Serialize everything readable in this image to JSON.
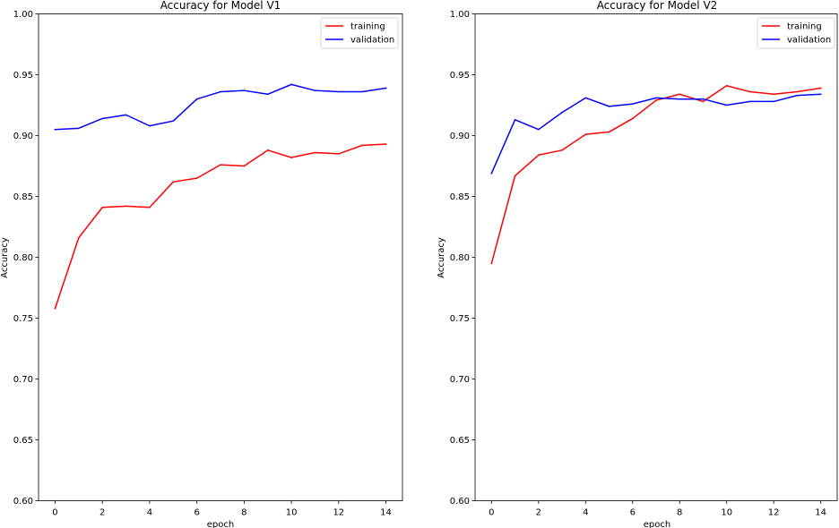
{
  "chart_data": [
    {
      "type": "line",
      "title": "Accuracy for Model V1",
      "xlabel": "epoch",
      "ylabel": "Accuracy",
      "xlim": [
        -0.7,
        14.7
      ],
      "ylim": [
        0.6,
        1.0
      ],
      "xticks": [
        0,
        2,
        4,
        6,
        8,
        10,
        12,
        14
      ],
      "yticks": [
        0.6,
        0.65,
        0.7,
        0.75,
        0.8,
        0.85,
        0.9,
        0.95,
        1.0
      ],
      "xtick_labels": [
        "0",
        "2",
        "4",
        "6",
        "8",
        "10",
        "12",
        "14"
      ],
      "ytick_labels": [
        "0.60",
        "0.65",
        "0.70",
        "0.75",
        "0.80",
        "0.85",
        "0.90",
        "0.95",
        "1.00"
      ],
      "grid": false,
      "legend": "top-right",
      "x": [
        0,
        1,
        2,
        3,
        4,
        5,
        6,
        7,
        8,
        9,
        10,
        11,
        12,
        13,
        14
      ],
      "series": [
        {
          "name": "training",
          "color": "#ff0000",
          "values": [
            0.758,
            0.816,
            0.841,
            0.842,
            0.841,
            0.862,
            0.865,
            0.876,
            0.875,
            0.888,
            0.882,
            0.886,
            0.885,
            0.892,
            0.893
          ]
        },
        {
          "name": "validation",
          "color": "#0000ff",
          "values": [
            0.905,
            0.906,
            0.914,
            0.917,
            0.908,
            0.912,
            0.93,
            0.936,
            0.937,
            0.934,
            0.942,
            0.937,
            0.936,
            0.936,
            0.939
          ]
        }
      ]
    },
    {
      "type": "line",
      "title": "Accuracy for Model V2",
      "xlabel": "epoch",
      "ylabel": "Accuracy",
      "xlim": [
        -0.7,
        14.7
      ],
      "ylim": [
        0.6,
        1.0
      ],
      "xticks": [
        0,
        2,
        4,
        6,
        8,
        10,
        12,
        14
      ],
      "yticks": [
        0.6,
        0.65,
        0.7,
        0.75,
        0.8,
        0.85,
        0.9,
        0.95,
        1.0
      ],
      "xtick_labels": [
        "0",
        "2",
        "4",
        "6",
        "8",
        "10",
        "12",
        "14"
      ],
      "ytick_labels": [
        "0.60",
        "0.65",
        "0.70",
        "0.75",
        "0.80",
        "0.85",
        "0.90",
        "0.95",
        "1.00"
      ],
      "grid": false,
      "legend": "top-right",
      "x": [
        0,
        1,
        2,
        3,
        4,
        5,
        6,
        7,
        8,
        9,
        10,
        11,
        12,
        13,
        14
      ],
      "series": [
        {
          "name": "training",
          "color": "#ff0000",
          "values": [
            0.795,
            0.867,
            0.884,
            0.888,
            0.901,
            0.903,
            0.914,
            0.929,
            0.934,
            0.928,
            0.941,
            0.936,
            0.934,
            0.936,
            0.939
          ]
        },
        {
          "name": "validation",
          "color": "#0000ff",
          "values": [
            0.869,
            0.913,
            0.905,
            0.919,
            0.931,
            0.924,
            0.926,
            0.931,
            0.93,
            0.93,
            0.925,
            0.928,
            0.928,
            0.933,
            0.934
          ]
        }
      ]
    }
  ]
}
